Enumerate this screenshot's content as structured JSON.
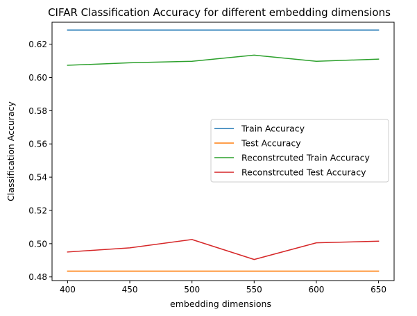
{
  "chart_data": {
    "type": "line",
    "title": "CIFAR Classification Accuracy for different embedding dimensions",
    "xlabel": "embedding dimensions",
    "ylabel": "Classification Accuracy",
    "x": [
      400,
      450,
      500,
      550,
      600,
      650
    ],
    "xticks": [
      "400",
      "450",
      "500",
      "550",
      "600",
      "650"
    ],
    "yticks": [
      "0.48",
      "0.50",
      "0.52",
      "0.54",
      "0.56",
      "0.58",
      "0.60",
      "0.62"
    ],
    "xlim": [
      387.5,
      662.5
    ],
    "ylim": [
      0.4778,
      0.6332
    ],
    "grid": false,
    "legend_position": "center-right",
    "series": [
      {
        "name": "Train Accuracy",
        "color": "#1f77b4",
        "values": [
          0.6285,
          0.6285,
          0.6285,
          0.6285,
          0.6285,
          0.6285
        ]
      },
      {
        "name": "Test Accuracy",
        "color": "#ff7f0e",
        "values": [
          0.4835,
          0.4835,
          0.4835,
          0.4835,
          0.4835,
          0.4835
        ]
      },
      {
        "name": "Reconstrcuted Train Accuracy",
        "color": "#2ca02c",
        "values": [
          0.6073,
          0.6088,
          0.6097,
          0.6134,
          0.6097,
          0.611
        ]
      },
      {
        "name": "Reconstrcuted Test Accuracy",
        "color": "#d62728",
        "values": [
          0.495,
          0.4975,
          0.5025,
          0.4905,
          0.5005,
          0.5015
        ]
      }
    ]
  }
}
